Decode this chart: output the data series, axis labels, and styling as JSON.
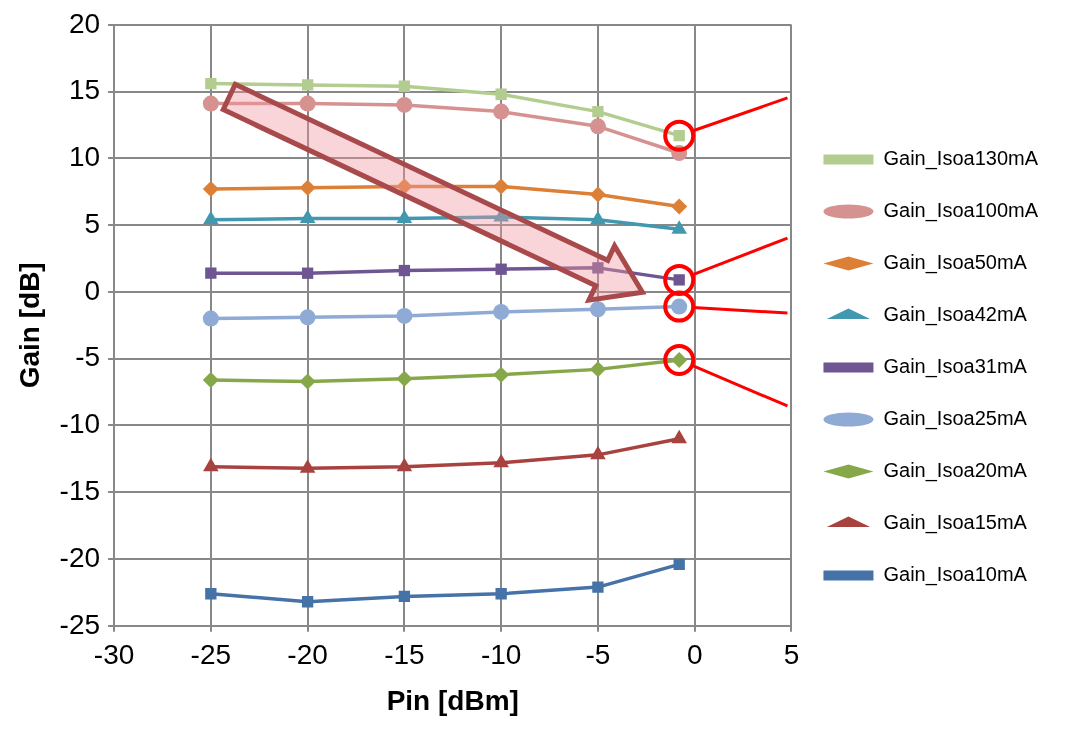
{
  "chart_data": {
    "type": "line",
    "xlabel": "Pin [dBm]",
    "ylabel": "Gain [dB]",
    "x": [
      -25,
      -20,
      -15,
      -10,
      -5,
      -0.8
    ],
    "xlim": [
      -30,
      5
    ],
    "xticks": [
      -30,
      -25,
      -20,
      -15,
      -10,
      -5,
      0,
      5
    ],
    "ylim": [
      -25,
      20
    ],
    "yticks": [
      -25,
      -20,
      -15,
      -10,
      -5,
      0,
      5,
      10,
      15,
      20
    ],
    "grid": true,
    "legend": "right",
    "line_style": "solid",
    "series": [
      {
        "name": "Gain_Isoa130mA",
        "color": "#b3cc8f",
        "marker": "square",
        "values": [
          15.6,
          15.5,
          15.4,
          14.8,
          13.5,
          11.7
        ]
      },
      {
        "name": "Gain_Isoa100mA",
        "color": "#d59291",
        "marker": "circle",
        "values": [
          14.1,
          14.1,
          14.0,
          13.5,
          12.4,
          10.4
        ]
      },
      {
        "name": "Gain_Isoa50mA",
        "color": "#dd8037",
        "marker": "diamond",
        "values": [
          7.7,
          7.8,
          7.9,
          7.9,
          7.3,
          6.4
        ]
      },
      {
        "name": "Gain_Isoa42mA",
        "color": "#4198af",
        "marker": "triangle",
        "values": [
          5.4,
          5.5,
          5.5,
          5.6,
          5.4,
          4.7
        ]
      },
      {
        "name": "Gain_Isoa31mA",
        "color": "#6f5592",
        "marker": "square",
        "values": [
          1.4,
          1.4,
          1.6,
          1.7,
          1.8,
          0.9
        ]
      },
      {
        "name": "Gain_Isoa25mA",
        "color": "#8eaad5",
        "marker": "circle",
        "values": [
          -2.0,
          -1.9,
          -1.8,
          -1.5,
          -1.3,
          -1.1
        ]
      },
      {
        "name": "Gain_Isoa20mA",
        "color": "#86a84a",
        "marker": "diamond",
        "values": [
          -6.6,
          -6.7,
          -6.5,
          -6.2,
          -5.8,
          -5.1
        ]
      },
      {
        "name": "Gain_Isoa15mA",
        "color": "#a8423f",
        "marker": "triangle",
        "values": [
          -13.1,
          -13.2,
          -13.1,
          -12.8,
          -12.2,
          -11.0
        ]
      },
      {
        "name": "Gain_Isoa10mA",
        "color": "#4572a7",
        "marker": "square",
        "values": [
          -22.6,
          -23.2,
          -22.8,
          -22.6,
          -22.1,
          -20.4
        ]
      }
    ]
  }
}
